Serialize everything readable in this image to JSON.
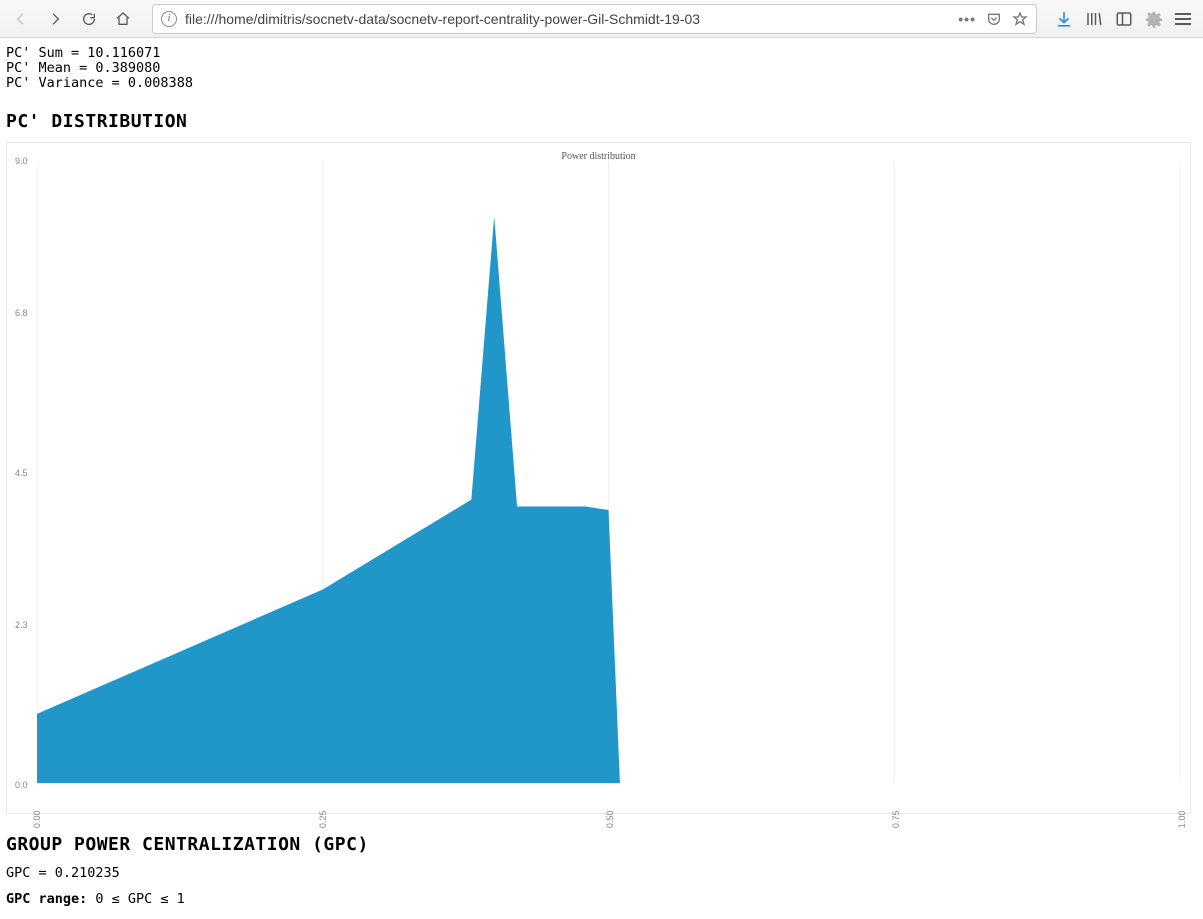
{
  "browser": {
    "url": "file:///home/dimitris/socnetv-data/socnetv-report-centrality-power-Gil-Schmidt-19-03"
  },
  "stats": {
    "sum_label": "PC' Sum = ",
    "sum_value": "10.116071",
    "mean_label": "PC' Mean = ",
    "mean_value": "0.389080",
    "var_label": "PC' Variance = ",
    "var_value": "0.008388"
  },
  "section1_title": "PC' DISTRIBUTION",
  "chart": {
    "type": "area",
    "title": "Power distribution",
    "title_fontsize": 10,
    "fill_color": "#2196c9",
    "background_color": "#ffffff",
    "grid_color": "#eeeeee",
    "x": [
      0.0,
      0.25,
      0.38,
      0.4,
      0.42,
      0.48,
      0.5,
      0.51
    ],
    "y": [
      1.0,
      2.8,
      4.1,
      8.2,
      4.0,
      4.0,
      3.95,
      0.0
    ],
    "xlim": [
      0.0,
      1.0
    ],
    "ylim": [
      0.0,
      9.0
    ],
    "xticks": [
      0.0,
      0.25,
      0.5,
      0.75,
      1.0
    ],
    "xtick_labels": [
      "0.00",
      "0.25",
      "0.50",
      "0.75",
      "1.00"
    ],
    "yticks": [
      0.0,
      2.3,
      4.5,
      6.8,
      9.0
    ],
    "ytick_labels": [
      "0.0",
      "2.3",
      "4.5",
      "6.8",
      "9.0"
    ],
    "axis_label_fontsize": 9,
    "axis_label_color": "#888888"
  },
  "section2_title": "GROUP POWER CENTRALIZATION (GPC)",
  "gpc": {
    "value_label": "GPC = ",
    "value": "0.210235",
    "range_label": "GPC range:",
    "range_text": " 0 ≤ GPC ≤ 1"
  }
}
